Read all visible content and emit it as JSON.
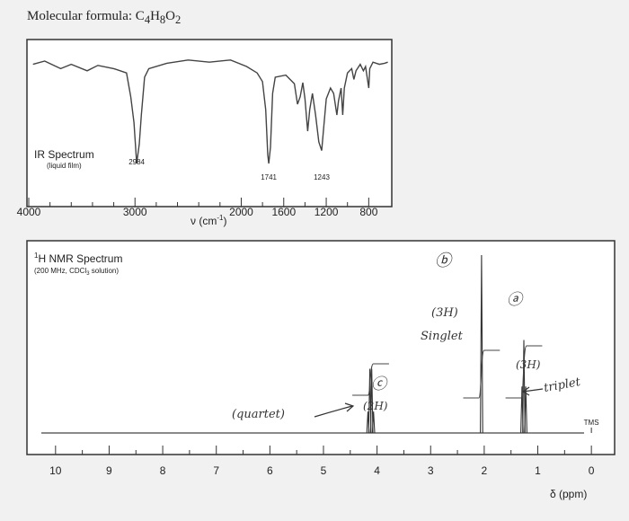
{
  "formula": {
    "prefix": "Molecular formula: ",
    "c": "C",
    "c_n": "4",
    "h": "H",
    "h_n": "8",
    "o": "O",
    "o_n": "2"
  },
  "chart_data": [
    {
      "type": "line",
      "title": "IR Spectrum",
      "subtitle": "(liquid film)",
      "xlabel": "ν (cm",
      "xlabel_sup": "-1",
      "xlabel_close": ")",
      "xlim": [
        4000,
        600
      ],
      "xticks": [
        4000,
        3000,
        2000,
        1600,
        1200,
        800
      ],
      "peaks": [
        {
          "x": 2984,
          "label": "2984"
        },
        {
          "x": 1741,
          "label": "1741"
        },
        {
          "x": 1243,
          "label": "1243"
        }
      ],
      "trace": [
        [
          3960,
          0.08
        ],
        [
          3850,
          0.05
        ],
        [
          3700,
          0.12
        ],
        [
          3600,
          0.08
        ],
        [
          3450,
          0.14
        ],
        [
          3350,
          0.09
        ],
        [
          3200,
          0.12
        ],
        [
          3080,
          0.16
        ],
        [
          3040,
          0.38
        ],
        [
          3010,
          0.62
        ],
        [
          2984,
          1.0
        ],
        [
          2960,
          0.82
        ],
        [
          2940,
          0.55
        ],
        [
          2910,
          0.2
        ],
        [
          2870,
          0.12
        ],
        [
          2700,
          0.07
        ],
        [
          2500,
          0.04
        ],
        [
          2300,
          0.06
        ],
        [
          2100,
          0.04
        ],
        [
          1950,
          0.1
        ],
        [
          1850,
          0.16
        ],
        [
          1800,
          0.24
        ],
        [
          1770,
          0.5
        ],
        [
          1750,
          0.92
        ],
        [
          1741,
          1.0
        ],
        [
          1725,
          0.85
        ],
        [
          1705,
          0.35
        ],
        [
          1680,
          0.2
        ],
        [
          1580,
          0.18
        ],
        [
          1500,
          0.26
        ],
        [
          1470,
          0.45
        ],
        [
          1445,
          0.38
        ],
        [
          1420,
          0.25
        ],
        [
          1400,
          0.4
        ],
        [
          1375,
          0.7
        ],
        [
          1355,
          0.5
        ],
        [
          1330,
          0.35
        ],
        [
          1300,
          0.55
        ],
        [
          1270,
          0.8
        ],
        [
          1243,
          0.88
        ],
        [
          1225,
          0.68
        ],
        [
          1200,
          0.4
        ],
        [
          1160,
          0.3
        ],
        [
          1130,
          0.35
        ],
        [
          1100,
          0.55
        ],
        [
          1085,
          0.42
        ],
        [
          1060,
          0.3
        ],
        [
          1045,
          0.55
        ],
        [
          1030,
          0.3
        ],
        [
          1000,
          0.16
        ],
        [
          960,
          0.12
        ],
        [
          940,
          0.22
        ],
        [
          920,
          0.14
        ],
        [
          880,
          0.08
        ],
        [
          850,
          0.14
        ],
        [
          830,
          0.1
        ],
        [
          800,
          0.3
        ],
        [
          790,
          0.12
        ],
        [
          760,
          0.06
        ],
        [
          700,
          0.08
        ],
        [
          650,
          0.07
        ],
        [
          620,
          0.06
        ]
      ]
    },
    {
      "type": "line",
      "title": "H NMR Spectrum",
      "title_sup": "1",
      "subtitle": "(200 MHz, CDCl",
      "subtitle_sub": "3",
      "subtitle_end": " solution)",
      "xlabel": "δ (ppm)",
      "xlim": [
        10.5,
        -0.4
      ],
      "xticks": [
        10,
        9,
        8,
        7,
        6,
        5,
        4,
        3,
        2,
        1,
        0
      ],
      "reference": {
        "x": 0,
        "label": "TMS"
      },
      "peaks": [
        {
          "name": "c",
          "shift": 4.12,
          "multiplicity": "quartet",
          "protons": 2,
          "height": 0.38,
          "lines": [
            4.17,
            4.135,
            4.1,
            4.065
          ]
        },
        {
          "name": "b",
          "shift": 2.05,
          "multiplicity": "singlet",
          "protons": 3,
          "height": 1.0,
          "lines": [
            2.05
          ]
        },
        {
          "name": "a",
          "shift": 1.26,
          "multiplicity": "triplet",
          "protons": 3,
          "height": 0.55,
          "lines": [
            1.295,
            1.26,
            1.225
          ]
        }
      ]
    }
  ],
  "annotations": {
    "a": "ⓐ",
    "b": "ⓑ",
    "c": "ⓒ",
    "c_multiplicity": "(quartet)",
    "c_protons": "(2H)",
    "b_protons": "(3H)",
    "b_multiplicity": "Singlet",
    "a_protons": "(3H)",
    "a_multiplicity": "triplet"
  }
}
